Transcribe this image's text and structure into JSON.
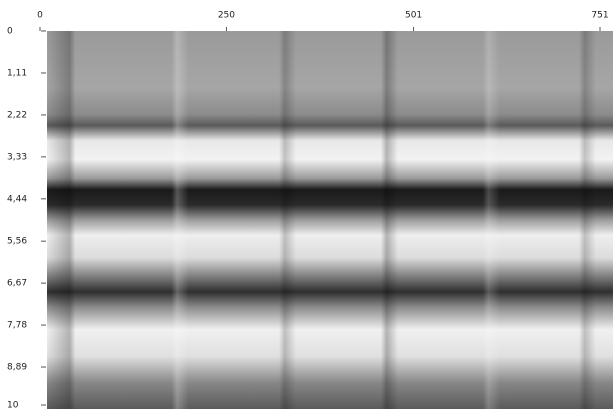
{
  "chart_data": {
    "type": "heatmap",
    "xlim": [
      0,
      751
    ],
    "xticks": [
      0,
      250,
      501,
      751
    ],
    "ylim": [
      0,
      10
    ],
    "yticks": [
      0,
      {
        "value": 1.11,
        "label": "1,11"
      },
      {
        "value": 2.22,
        "label": "2,22"
      },
      {
        "value": 3.33,
        "label": "3,33"
      },
      {
        "value": 4.44,
        "label": "4,44"
      },
      {
        "value": 5.56,
        "label": "5,56"
      },
      {
        "value": 6.67,
        "label": "6,67"
      },
      {
        "value": 7.78,
        "label": "7,78"
      },
      {
        "value": 8.89,
        "label": "8,89"
      },
      10
    ]
  }
}
